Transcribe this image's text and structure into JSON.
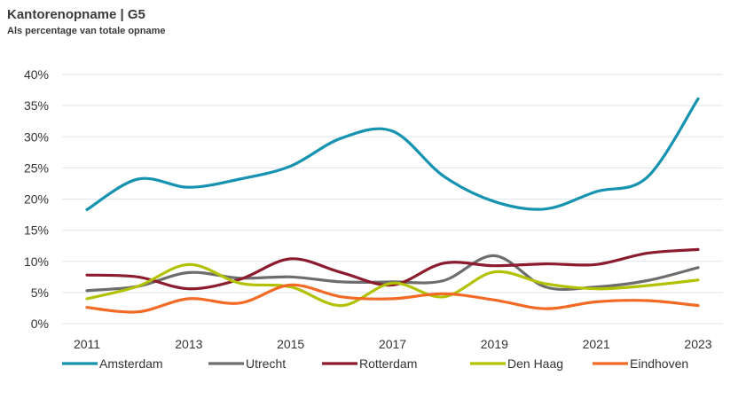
{
  "chart_data": {
    "type": "line",
    "title": "Kantorenopname | G5",
    "subtitle": "Als percentage van totale opname",
    "xlabel": "",
    "ylabel": "",
    "x": [
      2011,
      2012,
      2013,
      2014,
      2015,
      2016,
      2017,
      2018,
      2019,
      2020,
      2021,
      2022,
      2023
    ],
    "x_tick_labels": [
      "2011",
      "2013",
      "2015",
      "2017",
      "2019",
      "2021",
      "2023"
    ],
    "x_tick_values": [
      2011,
      2013,
      2015,
      2017,
      2019,
      2021,
      2023
    ],
    "y_tick_labels": [
      "0%",
      "5%",
      "10%",
      "15%",
      "20%",
      "25%",
      "30%",
      "35%",
      "40%"
    ],
    "y_tick_values": [
      0,
      5,
      10,
      15,
      20,
      25,
      30,
      35,
      40
    ],
    "ylim": [
      0,
      40
    ],
    "xlim": [
      2011,
      2023
    ],
    "grid": "horizontal",
    "legend_position": "bottom",
    "series": [
      {
        "name": "Amsterdam",
        "color": "#1593b0",
        "values": [
          18.3,
          23.2,
          21.9,
          23.2,
          25.3,
          29.8,
          30.9,
          23.7,
          19.6,
          18.4,
          21.2,
          23.5,
          36.1
        ]
      },
      {
        "name": "Utrecht",
        "color": "#6d6d6d",
        "values": [
          5.3,
          6.0,
          8.2,
          7.3,
          7.5,
          6.7,
          6.7,
          6.9,
          10.9,
          5.9,
          5.9,
          6.9,
          9.0
        ]
      },
      {
        "name": "Rotterdam",
        "color": "#8c1c2d",
        "values": [
          7.8,
          7.5,
          5.6,
          7.1,
          10.4,
          8.2,
          6.2,
          9.7,
          9.3,
          9.6,
          9.5,
          11.3,
          11.9
        ]
      },
      {
        "name": "Den Haag",
        "color": "#b2c100",
        "values": [
          4.0,
          6.0,
          9.5,
          6.5,
          5.9,
          2.9,
          6.5,
          4.3,
          8.3,
          6.4,
          5.6,
          6.1,
          7.0
        ]
      },
      {
        "name": "Eindhoven",
        "color": "#f26a24",
        "values": [
          2.6,
          1.9,
          4.0,
          3.3,
          6.2,
          4.3,
          4.0,
          4.8,
          3.8,
          2.4,
          3.5,
          3.7,
          2.9
        ]
      }
    ]
  }
}
